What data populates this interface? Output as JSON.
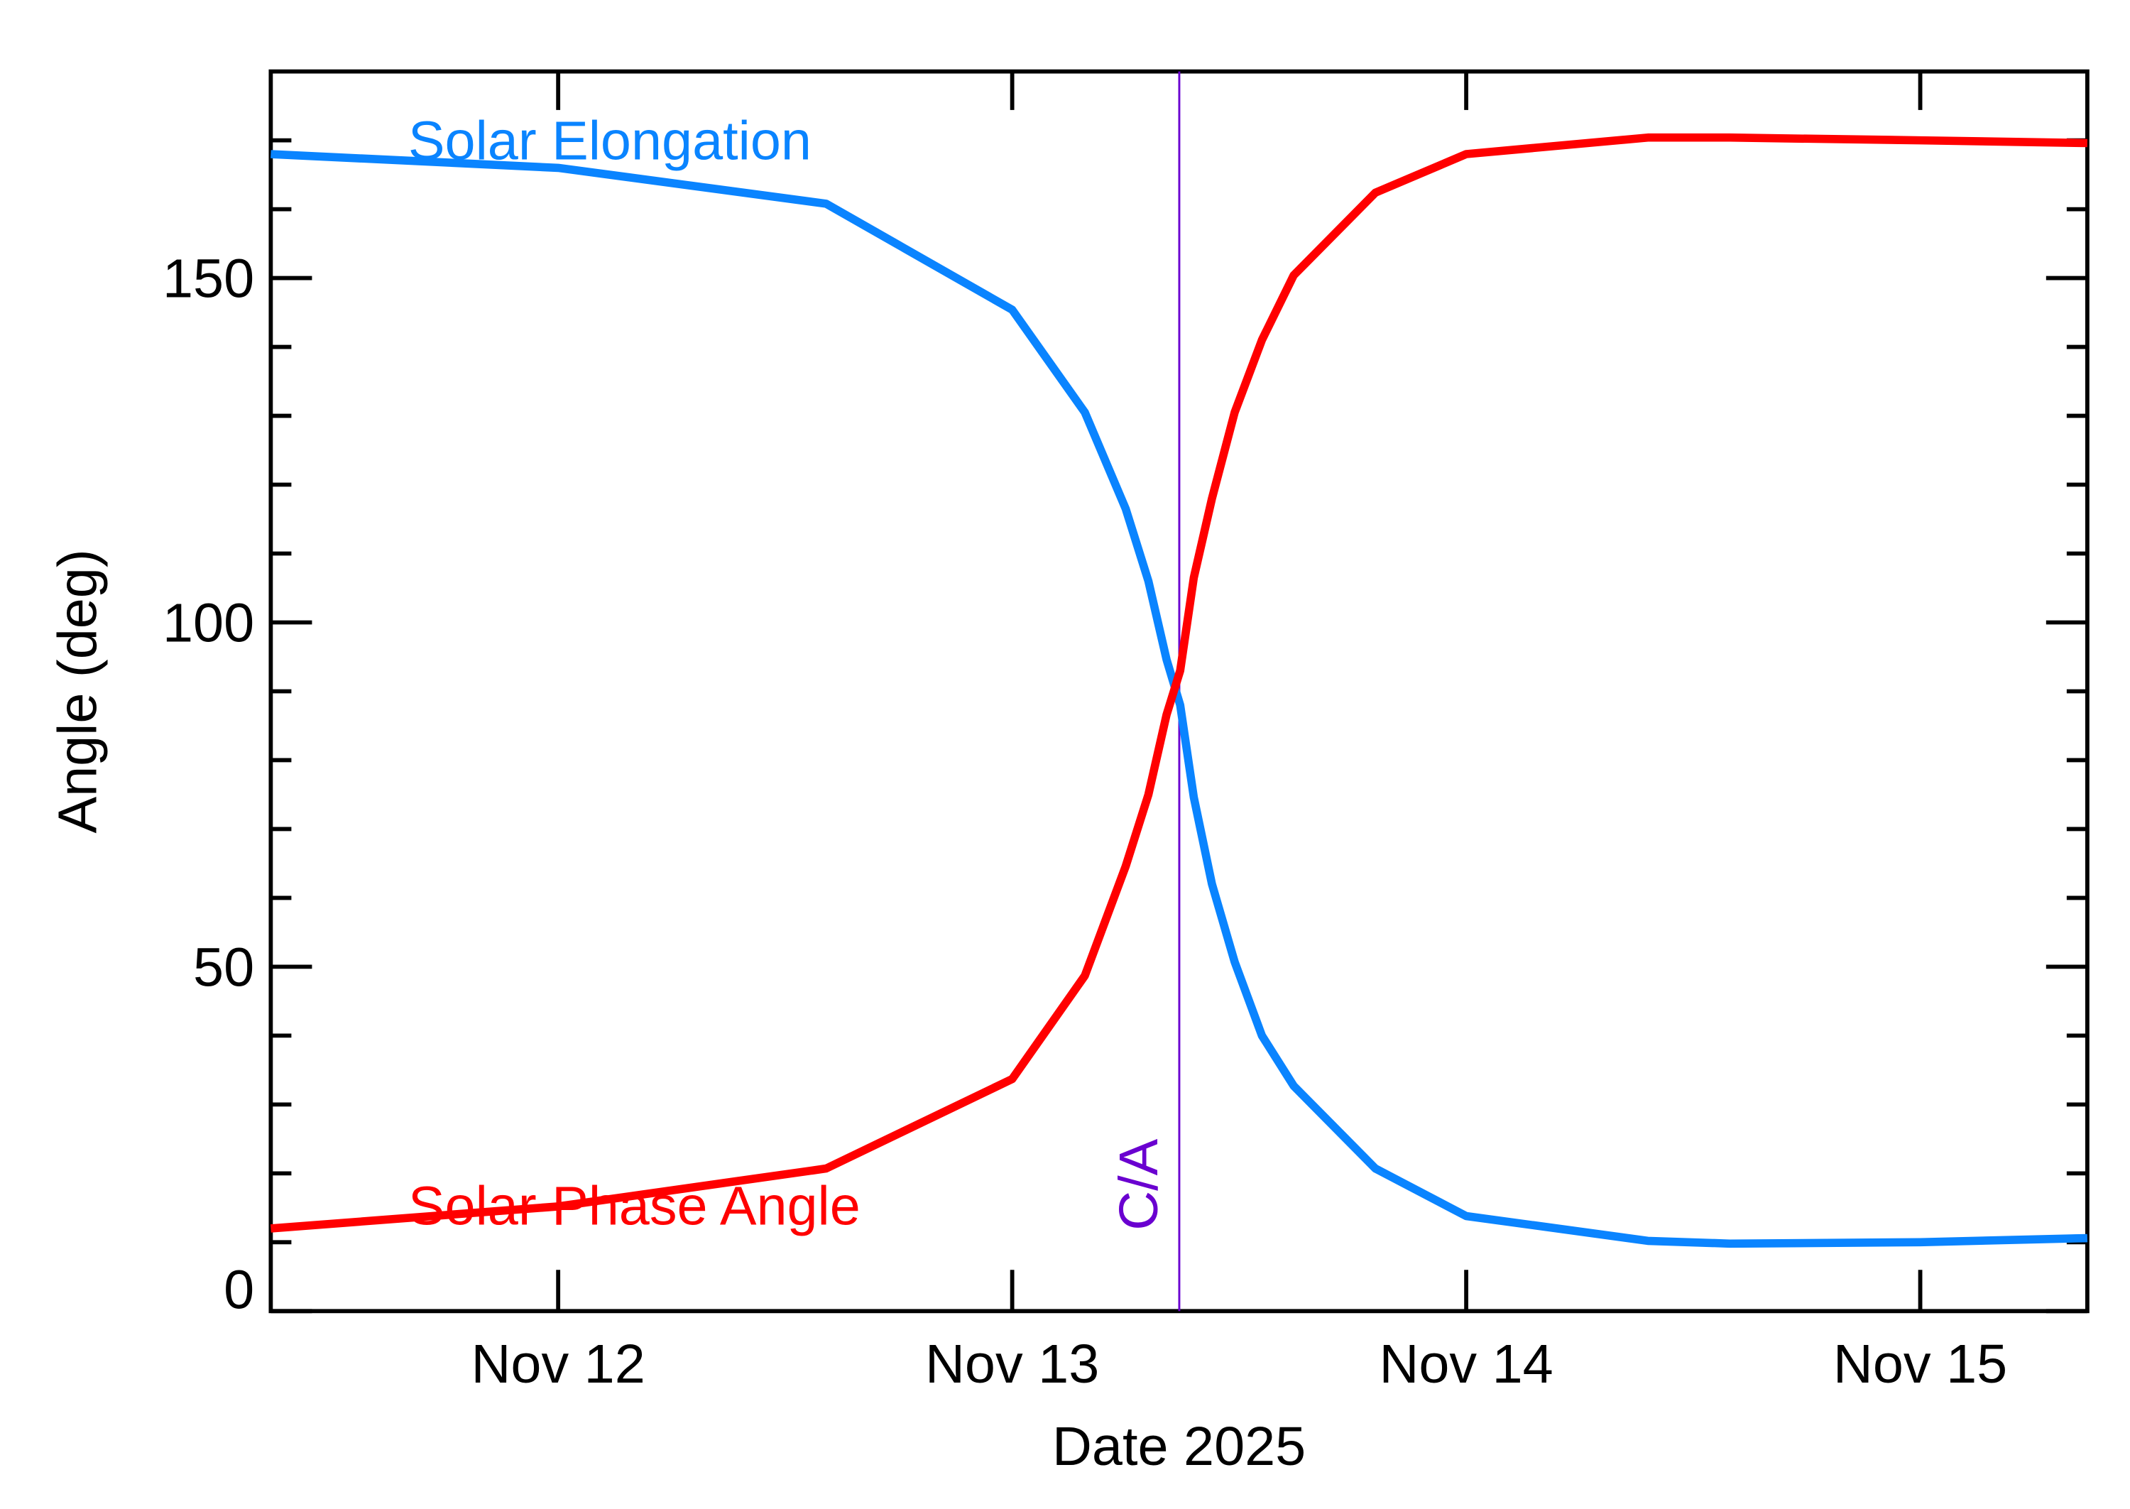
{
  "chart_data": {
    "type": "line",
    "x_label": "Date 2025",
    "y_label": "Angle (deg)",
    "xlim": [
      11.367,
      15.368
    ],
    "xticks": [
      {
        "value": 12,
        "label": "Nov 12"
      },
      {
        "value": 13,
        "label": "Nov 13"
      },
      {
        "value": 14,
        "label": "Nov 14"
      },
      {
        "value": 15,
        "label": "Nov 15"
      }
    ],
    "ylim": [
      0,
      180
    ],
    "yticks": [
      0,
      50,
      100,
      150
    ],
    "y_minor_ticks": [
      10,
      20,
      30,
      40,
      60,
      70,
      80,
      90,
      110,
      120,
      130,
      140,
      160,
      170
    ],
    "x": [
      11.367,
      12.0,
      12.59,
      13.0,
      13.16,
      13.25,
      13.3,
      13.34,
      13.37,
      13.4,
      13.44,
      13.49,
      13.55,
      13.62,
      13.8,
      14.0,
      14.4,
      14.58,
      15.0,
      15.368
    ],
    "series": [
      {
        "name": "Solar Elongation",
        "color": "#0a84ff",
        "values": [
          168,
          166,
          160.8,
          145.4,
          130.5,
          116.5,
          106,
          94.6,
          88,
          74.6,
          62,
          50.7,
          40,
          32.7,
          20.7,
          13.8,
          10.2,
          9.8,
          10,
          10.6
        ]
      },
      {
        "name": "Solar Phase Angle",
        "color": "#ff0000",
        "values": [
          12,
          15.2,
          20.7,
          33.7,
          48.7,
          64.6,
          75,
          86.6,
          93,
          106.5,
          118,
          130.5,
          141,
          150.4,
          162.4,
          168,
          170.4,
          170.4,
          170,
          169.6
        ]
      }
    ],
    "annotations": [
      {
        "text": "C/A",
        "x": 13.368,
        "color": "#6a00d0"
      }
    ]
  }
}
